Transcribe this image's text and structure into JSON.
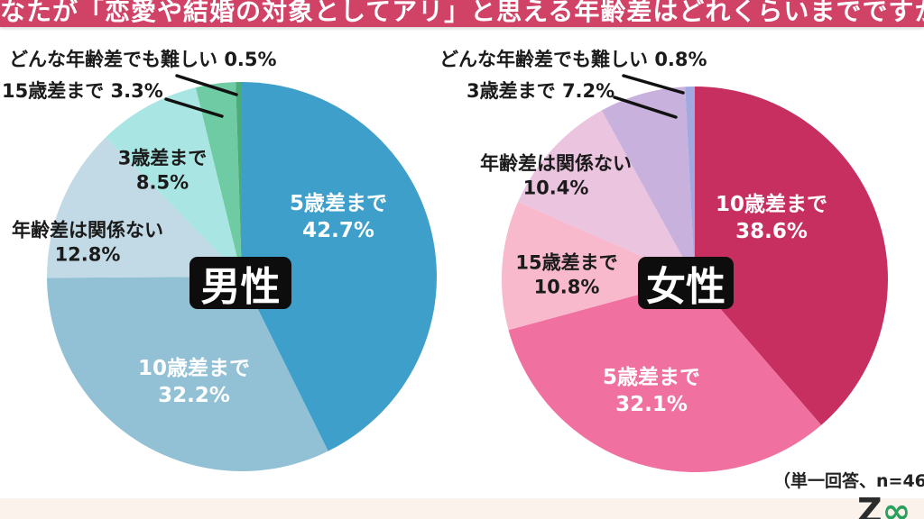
{
  "header": {
    "title": "なたが「恋愛や結婚の対象としてアリ」と思える年齢差はどれくらいまでですか",
    "bar_color": "#d04266"
  },
  "chart_data": [
    {
      "type": "pie",
      "group": "男性",
      "labels": [
        "5歳差まで",
        "10歳差まで",
        "年齢差は関係ない",
        "3歳差まで",
        "15歳差まで",
        "どんな年齢差でも難しい"
      ],
      "values": [
        42.7,
        32.2,
        12.8,
        8.5,
        3.3,
        0.5
      ],
      "colors": [
        "#3d9fca",
        "#92c0d4",
        "#c2dae5",
        "#a9e5e2",
        "#6fcba4",
        "#4bab79"
      ],
      "start": "12-oclock",
      "direction": "clockwise",
      "center_label": "男性",
      "center_label_style": "white-on-black"
    },
    {
      "type": "pie",
      "group": "女性",
      "labels": [
        "10歳差まで",
        "5歳差まで",
        "15歳差まで",
        "年齢差は関係ない",
        "3歳差まで",
        "どんな年齢差でも難しい"
      ],
      "values": [
        38.6,
        32.1,
        10.8,
        10.4,
        7.2,
        0.8
      ],
      "colors": [
        "#c62f60",
        "#f0719f",
        "#f8b9cd",
        "#ebc4df",
        "#c9b1de",
        "#a2a8e0"
      ],
      "start": "12-oclock",
      "direction": "clockwise",
      "center_label": "女性",
      "center_label_style": "white-on-black"
    }
  ],
  "footnote": "（単一回答、n=46",
  "brand": {
    "partial_text": "Z",
    "accent_glyph": "∞",
    "accent_color": "#2ba05c"
  },
  "colors": {
    "background": "#ffffff",
    "footer_strip": "#fcf2ec",
    "badge_bg": "#0d0d0d",
    "label_text": "#1b1b1b"
  }
}
